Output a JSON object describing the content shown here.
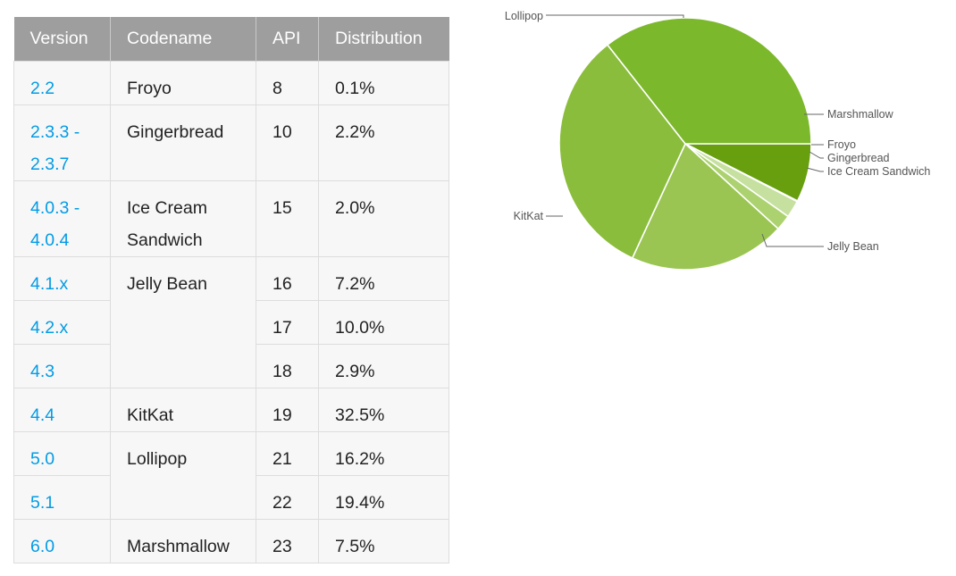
{
  "table": {
    "headers": [
      "Version",
      "Codename",
      "API",
      "Distribution"
    ],
    "rows": [
      {
        "version": [
          "2.2"
        ],
        "codename": [
          "Froyo"
        ],
        "codename_rowspan": 1,
        "api": "8",
        "distribution": "0.1%"
      },
      {
        "version": [
          "2.3.3 -",
          "2.3.7"
        ],
        "codename": [
          "Gingerbread"
        ],
        "codename_rowspan": 1,
        "api": "10",
        "distribution": "2.2%"
      },
      {
        "version": [
          "4.0.3 -",
          "4.0.4"
        ],
        "codename": [
          "Ice Cream",
          "Sandwich"
        ],
        "codename_rowspan": 1,
        "api": "15",
        "distribution": "2.0%"
      },
      {
        "version": [
          "4.1.x"
        ],
        "codename": [
          "Jelly Bean"
        ],
        "codename_rowspan": 3,
        "api": "16",
        "distribution": "7.2%"
      },
      {
        "version": [
          "4.2.x"
        ],
        "codename": null,
        "api": "17",
        "distribution": "10.0%"
      },
      {
        "version": [
          "4.3"
        ],
        "codename": null,
        "api": "18",
        "distribution": "2.9%"
      },
      {
        "version": [
          "4.4"
        ],
        "codename": [
          "KitKat"
        ],
        "codename_rowspan": 1,
        "api": "19",
        "distribution": "32.5%"
      },
      {
        "version": [
          "5.0"
        ],
        "codename": [
          "Lollipop"
        ],
        "codename_rowspan": 2,
        "api": "21",
        "distribution": "16.2%"
      },
      {
        "version": [
          "5.1"
        ],
        "codename": null,
        "api": "22",
        "distribution": "19.4%"
      },
      {
        "version": [
          "6.0"
        ],
        "codename": [
          "Marshmallow"
        ],
        "codename_rowspan": 1,
        "api": "23",
        "distribution": "7.5%"
      }
    ]
  },
  "chart_data": {
    "type": "pie",
    "categories": [
      "Marshmallow",
      "Froyo",
      "Gingerbread",
      "Ice Cream Sandwich",
      "Jelly Bean",
      "KitKat",
      "Lollipop"
    ],
    "values": [
      7.5,
      0.1,
      2.2,
      2.0,
      20.1,
      32.5,
      35.6
    ],
    "colors": [
      "#689f0f",
      "#d8e9bf",
      "#c6e0a0",
      "#acd26f",
      "#9ac552",
      "#8bbd3c",
      "#7cb82b"
    ],
    "legend_position": "labels with leader lines",
    "start_angle_deg": 0,
    "direction": "clockwise"
  }
}
